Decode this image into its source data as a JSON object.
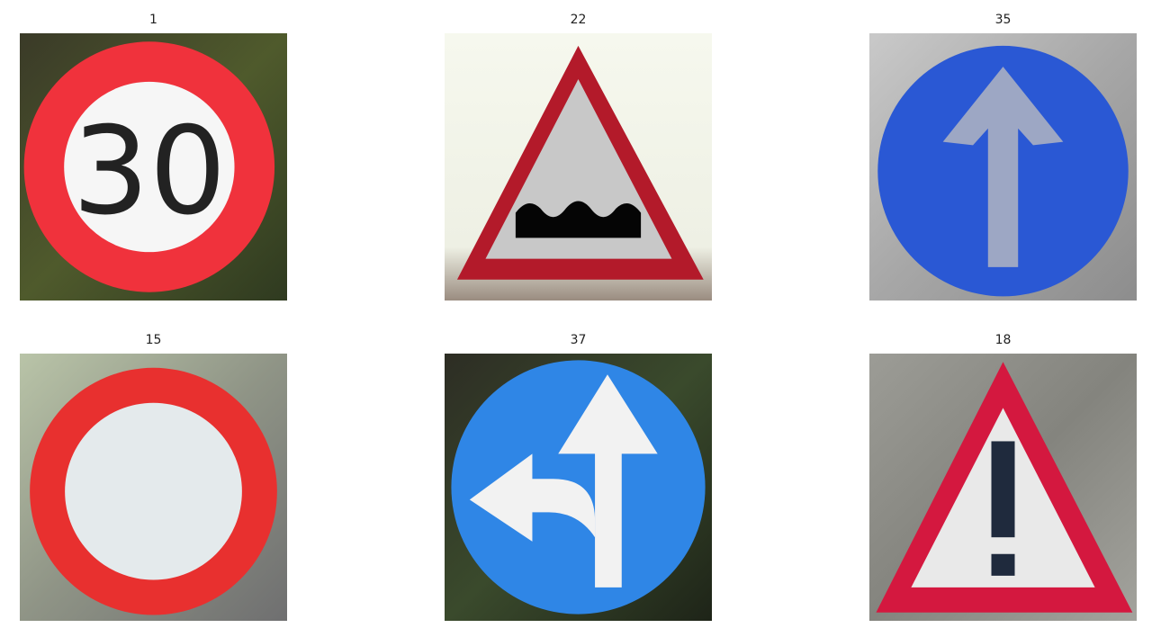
{
  "figure": {
    "panels": [
      {
        "label": "1",
        "sign": "speed-limit-30",
        "digits": "30"
      },
      {
        "label": "22",
        "sign": "bumpy-road"
      },
      {
        "label": "35",
        "sign": "ahead-only"
      },
      {
        "label": "15",
        "sign": "no-vehicles"
      },
      {
        "label": "37",
        "sign": "go-straight-or-left"
      },
      {
        "label": "18",
        "sign": "general-caution"
      }
    ]
  },
  "colors": {
    "red": "#f0323c",
    "dark_red": "#b31a2a",
    "blue": "#2a58d4",
    "light_blue": "#2f86e6",
    "white": "#f4f4f4"
  }
}
